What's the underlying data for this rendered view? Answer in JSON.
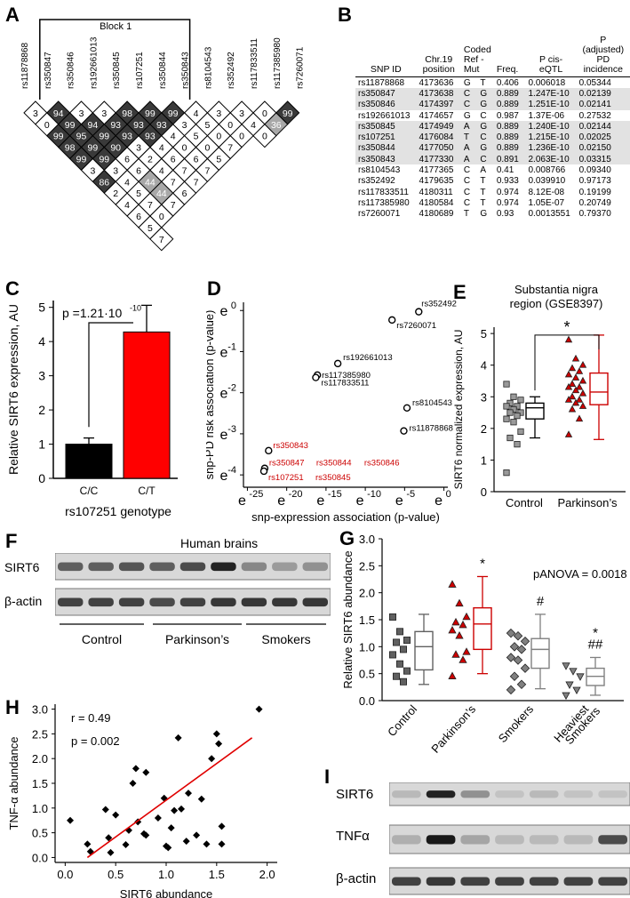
{
  "panel_labels": {
    "A": "A",
    "B": "B",
    "C": "C",
    "D": "D",
    "E": "E",
    "F": "F",
    "G": "G",
    "H": "H",
    "I": "I"
  },
  "panelA": {
    "block_label": "Block 1",
    "snps": [
      "rs11878868",
      "rs350847",
      "rs350846",
      "rs192661013",
      "rs350845",
      "rs107251",
      "rs350844",
      "rs350843",
      "rs8104543",
      "rs352492",
      "rs117833511",
      "rs117385980",
      "rs7260071"
    ],
    "ld_rows": [
      [
        3,
        94,
        3,
        3,
        98,
        99,
        99,
        4,
        3,
        3,
        0,
        99
      ],
      [
        0,
        99,
        94,
        93,
        93,
        93,
        3,
        5,
        0,
        4,
        36
      ],
      [
        99,
        95,
        99,
        93,
        93,
        4,
        5,
        0,
        0,
        0
      ],
      [
        98,
        99,
        90,
        3,
        4,
        0,
        0,
        7
      ],
      [
        99,
        99,
        6,
        2,
        6,
        6,
        5
      ],
      [
        3,
        3,
        6,
        4,
        7,
        7
      ],
      [
        86,
        4,
        44,
        7,
        7
      ],
      [
        2,
        5,
        44,
        6
      ],
      [
        4,
        7,
        7
      ],
      [
        6,
        0
      ],
      [
        5
      ],
      [
        7
      ]
    ]
  },
  "panelB": {
    "headers": [
      "SNP ID",
      "Chr.19 position",
      "Coded Ref - Mut",
      "",
      "Freq.",
      "P cis-eQTL",
      "P (adjusted) PD incidence"
    ],
    "rows": [
      [
        "rs11878868",
        "4173636",
        "G",
        "T",
        "0.406",
        "0.006018",
        "0.05344"
      ],
      [
        "rs350847",
        "4173638",
        "C",
        "G",
        "0.889",
        "1.247E-10",
        "0.02139"
      ],
      [
        "rs350846",
        "4174397",
        "C",
        "G",
        "0.889",
        "1.251E-10",
        "0.02141"
      ],
      [
        "rs192661013",
        "4174657",
        "G",
        "C",
        "0.987",
        "1.37E-06",
        "0.27532"
      ],
      [
        "rs350845",
        "4174949",
        "A",
        "G",
        "0.889",
        "1.240E-10",
        "0.02144"
      ],
      [
        "rs107251",
        "4176084",
        "T",
        "C",
        "0.889",
        "1.215E-10",
        "0.02025"
      ],
      [
        "rs350844",
        "4177050",
        "A",
        "G",
        "0.889",
        "1.236E-10",
        "0.02150"
      ],
      [
        "rs350843",
        "4177330",
        "A",
        "C",
        "0.891",
        "2.063E-10",
        "0.03315"
      ],
      [
        "rs8104543",
        "4177365",
        "C",
        "A",
        "0.41",
        "0.008766",
        "0.09340"
      ],
      [
        "rs352492",
        "4179635",
        "C",
        "T",
        "0.933",
        "0.039910",
        "0.97173"
      ],
      [
        "rs117833511",
        "4180311",
        "C",
        "T",
        "0.974",
        "8.12E-08",
        "0.19199"
      ],
      [
        "rs117385980",
        "4180584",
        "C",
        "T",
        "0.974",
        "1.05E-07",
        "0.20749"
      ],
      [
        "rs7260071",
        "4180689",
        "T",
        "G",
        "0.93",
        "0.0013551",
        "0.79370"
      ]
    ],
    "highlighted": [
      1,
      2,
      4,
      5,
      6,
      7
    ]
  },
  "chart_data": [
    {
      "panel": "C",
      "type": "bar",
      "categories": [
        "C/C",
        "C/T"
      ],
      "values": [
        1.0,
        4.28
      ],
      "errors": [
        0.18,
        0.78
      ],
      "colors": [
        "#000000",
        "#ff0000"
      ],
      "ylabel": "Relative SIRT6 expression, AU",
      "xlabel": "rs107251 genotype",
      "yticks": [
        "0",
        "1",
        "2",
        "3",
        "4",
        "5"
      ],
      "ylim": [
        0,
        5.2
      ],
      "annotation": "p =1.21·10",
      "annotation_exp": "-10"
    },
    {
      "panel": "D",
      "type": "scatter",
      "xlabel": "snp-expression association (p-value)",
      "ylabel": "snp-PD risk association (p-value)",
      "xtick_exps": [
        "-25",
        "-20",
        "-15",
        "-10",
        "-5",
        "0"
      ],
      "ytick_exps": [
        "-4",
        "-3",
        "-2",
        "-1",
        "0"
      ],
      "tick_base": "e",
      "points": [
        {
          "label": "rs352492",
          "x": -3.2,
          "y": -0.03,
          "color": "#000000"
        },
        {
          "label": "rs7260071",
          "x": -6.6,
          "y": -0.23,
          "color": "#000000"
        },
        {
          "label": "rs192661013",
          "x": -13.5,
          "y": -1.29,
          "color": "#000000"
        },
        {
          "label": "rs117385980",
          "x": -16.1,
          "y": -1.57,
          "color": "#000000"
        },
        {
          "label": "rs117833511",
          "x": -16.3,
          "y": -1.63,
          "color": "#000000"
        },
        {
          "label": "rs8104543",
          "x": -4.7,
          "y": -2.37,
          "color": "#000000"
        },
        {
          "label": "rs11878868",
          "x": -5.1,
          "y": -2.93,
          "color": "#000000"
        },
        {
          "label": "rs350843",
          "x": -22.3,
          "y": -3.41,
          "color": "#cc0000"
        },
        {
          "label": "rs350847",
          "x": -22.8,
          "y": -3.84,
          "color": "#cc0000"
        },
        {
          "label": "rs107251",
          "x": -22.9,
          "y": -3.91,
          "color": "#cc0000"
        }
      ],
      "extra_labels": [
        "rs350844",
        "rs350846",
        "rs350845"
      ],
      "xlim": [
        -25.5,
        0.5
      ],
      "ylim": [
        -4.3,
        0.2
      ]
    },
    {
      "panel": "E",
      "type": "box",
      "title": "Substantia nigra region (GSE8397)",
      "ylabel": "SIRT6 normalized expression, AU",
      "categories": [
        "Control",
        "Parkinson’s"
      ],
      "yticks": [
        "0",
        "1",
        "2",
        "3",
        "4",
        "5"
      ],
      "ylim": [
        0,
        5.2
      ],
      "significance": "*",
      "groups": [
        {
          "name": "Control",
          "color": "#000000",
          "marker": "square",
          "points": [
            3.4,
            3.0,
            2.9,
            2.8,
            2.7,
            2.7,
            2.6,
            2.5,
            2.5,
            2.4,
            2.3,
            2.2,
            1.9,
            1.7,
            1.5,
            0.6
          ],
          "box": {
            "min": 1.7,
            "q1": 2.3,
            "median": 2.65,
            "q3": 2.8,
            "max": 3.0
          }
        },
        {
          "name": "Parkinson’s",
          "color": "#cc0000",
          "marker": "triangle",
          "points": [
            4.8,
            4.2,
            4.0,
            3.9,
            3.8,
            3.7,
            3.6,
            3.5,
            3.4,
            3.3,
            3.3,
            3.2,
            3.1,
            3.0,
            2.9,
            2.9,
            2.8,
            2.7,
            2.6,
            2.3,
            1.8
          ],
          "box": {
            "min": 1.65,
            "q1": 2.75,
            "median": 3.15,
            "q3": 3.75,
            "max": 4.95
          }
        }
      ]
    },
    {
      "panel": "G",
      "type": "box",
      "ylabel": "Relative SIRT6 abundance",
      "annotation": "pANOVA = 0.0018",
      "categories": [
        "Control",
        "Parkinson’s",
        "Smokers",
        "Heaviest Smokers"
      ],
      "yticks": [
        "0.0",
        "0.5",
        "1.0",
        "1.5",
        "2.0",
        "2.5",
        "3.0"
      ],
      "ylim": [
        0,
        3.0
      ],
      "groups": [
        {
          "name": "Control",
          "color": "#606060",
          "marker": "square",
          "sig": "",
          "points": [
            1.55,
            1.28,
            1.12,
            1.08,
            0.95,
            0.85,
            0.68,
            0.55,
            0.45,
            0.35
          ],
          "box": {
            "min": 0.3,
            "q1": 0.57,
            "median": 1.0,
            "q3": 1.28,
            "max": 1.6
          }
        },
        {
          "name": "Parkinson’s",
          "color": "#cc0000",
          "marker": "triangle",
          "sig": "*",
          "points": [
            2.15,
            1.8,
            1.55,
            1.45,
            1.4,
            1.3,
            1.2,
            0.9,
            0.85,
            0.75,
            0.45
          ],
          "box": {
            "min": 0.5,
            "q1": 0.95,
            "median": 1.42,
            "q3": 1.72,
            "max": 2.3
          }
        },
        {
          "name": "Smokers",
          "color": "#808080",
          "marker": "diamond",
          "sig": "#",
          "points": [
            1.25,
            1.2,
            1.1,
            1.0,
            0.95,
            0.8,
            0.75,
            0.6,
            0.45,
            0.3,
            0.2
          ],
          "box": {
            "min": 0.22,
            "q1": 0.6,
            "median": 0.95,
            "q3": 1.15,
            "max": 1.6
          }
        },
        {
          "name": "Heaviest Smokers",
          "color": "#808080",
          "marker": "triangle-down",
          "sig": "*\n##",
          "points": [
            0.65,
            0.55,
            0.45,
            0.3,
            0.2,
            0.1
          ],
          "box": {
            "min": 0.1,
            "q1": 0.28,
            "median": 0.45,
            "q3": 0.6,
            "max": 0.8
          }
        }
      ]
    },
    {
      "panel": "H",
      "type": "scatter",
      "xlabel": "SIRT6 abundance",
      "ylabel": "TNF-α abundance",
      "r_text": "r = 0.49",
      "p_text": "p = 0.002",
      "xticks": [
        "0.0",
        "0.5",
        "1.0",
        "1.5",
        "2.0"
      ],
      "yticks": [
        "0.0",
        "0.5",
        "1.0",
        "1.5",
        "2.0",
        "2.5",
        "3.0"
      ],
      "xlim": [
        -0.1,
        2.1
      ],
      "ylim": [
        -0.1,
        3.1
      ],
      "fit": {
        "x1": 0.22,
        "y1": 0.0,
        "x2": 1.85,
        "y2": 2.42,
        "color": "#e00000"
      },
      "points": [
        [
          0.05,
          0.75
        ],
        [
          0.22,
          0.27
        ],
        [
          0.25,
          0.12
        ],
        [
          0.4,
          0.97
        ],
        [
          0.43,
          0.4
        ],
        [
          0.45,
          0.1
        ],
        [
          0.5,
          0.86
        ],
        [
          0.6,
          0.26
        ],
        [
          0.63,
          0.55
        ],
        [
          0.67,
          1.5
        ],
        [
          0.7,
          1.8
        ],
        [
          0.72,
          0.72
        ],
        [
          0.78,
          0.48
        ],
        [
          0.8,
          0.45
        ],
        [
          0.8,
          1.72
        ],
        [
          0.92,
          0.8
        ],
        [
          0.98,
          1.2
        ],
        [
          1.0,
          0.23
        ],
        [
          1.02,
          0.2
        ],
        [
          1.05,
          0.6
        ],
        [
          1.08,
          0.95
        ],
        [
          1.12,
          2.42
        ],
        [
          1.15,
          0.98
        ],
        [
          1.2,
          0.33
        ],
        [
          1.22,
          1.3
        ],
        [
          1.3,
          0.45
        ],
        [
          1.35,
          1.18
        ],
        [
          1.4,
          0.27
        ],
        [
          1.45,
          2.0
        ],
        [
          1.5,
          2.5
        ],
        [
          1.52,
          2.3
        ],
        [
          1.55,
          0.63
        ],
        [
          1.55,
          0.27
        ],
        [
          1.92,
          3.0
        ]
      ]
    }
  ],
  "panelF": {
    "title": "Human brains",
    "rows": [
      "SIRT6",
      "β-actin"
    ],
    "groups": [
      "Control",
      "Parkinson’s",
      "Smokers"
    ],
    "sirt6_intensity": [
      0.6,
      0.6,
      0.65,
      0.6,
      0.7,
      0.9,
      0.4,
      0.3,
      0.35
    ],
    "actin_intensity": [
      0.75,
      0.75,
      0.75,
      0.7,
      0.75,
      0.8,
      0.8,
      0.8,
      0.8
    ]
  },
  "panelI": {
    "rows": [
      "SIRT6",
      "TNFα",
      "β-actin"
    ],
    "sirt6_intensity": [
      0.15,
      0.9,
      0.35,
      0.1,
      0.15,
      0.1,
      0.1
    ],
    "tnf_intensity": [
      0.2,
      0.95,
      0.25,
      0.15,
      0.15,
      0.15,
      0.7
    ],
    "actin_intensity": [
      0.75,
      0.8,
      0.75,
      0.75,
      0.75,
      0.75,
      0.75
    ]
  }
}
